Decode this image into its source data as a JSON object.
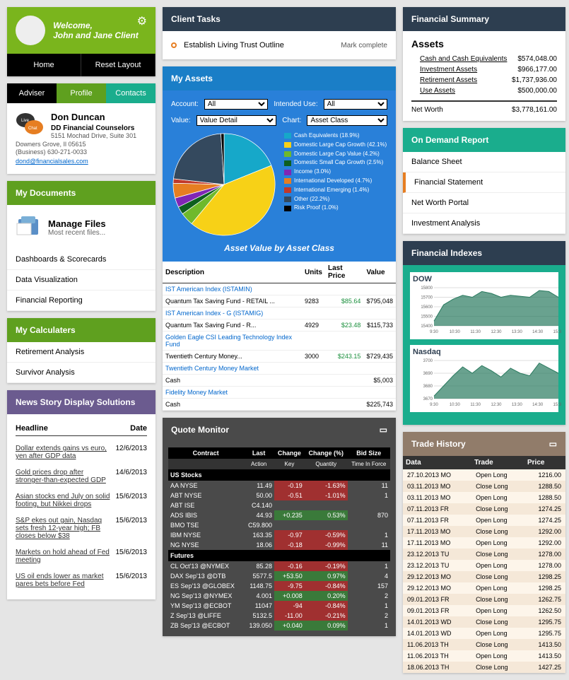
{
  "welcome": {
    "greeting": "Welcome,",
    "name": "John and Jane Client"
  },
  "nav": {
    "home": "Home",
    "reset": "Reset  Layout"
  },
  "tabs": {
    "adviser": "Adviser",
    "profile": "Profile",
    "contacts": "Contacts"
  },
  "adviser": {
    "name": "Don Duncan",
    "company": "DD Financial Counselors",
    "addr1": "5151 Mochad Drive, Suite 301",
    "addr2": "Downers Grove, Il 05615",
    "phone": "(Business) 630-271-0033",
    "email": "dond@financialsales.com"
  },
  "myDocuments": {
    "title": "My Documents",
    "manage": "Manage Files",
    "sub": "Most recent files...",
    "items": [
      "Dashboards & Scorecards",
      "Data Visualization",
      "Financial Reporting"
    ]
  },
  "myCalculators": {
    "title": "My Calculaters",
    "items": [
      "Retirement Analysis",
      "Survivor Analysis"
    ]
  },
  "news": {
    "title": "News  Story Display Solutions",
    "col1": "Headline",
    "col2": "Date",
    "rows": [
      {
        "h": "Dollar extends gains vs euro, yen after GDP data",
        "d": "12/6/2013"
      },
      {
        "h": "Gold prices drop after stronger-than-expected GDP",
        "d": "14/6/2013"
      },
      {
        "h": "Asian stocks end July on solid footing, but Nikkei drops",
        "d": "15/6/2013"
      },
      {
        "h": "S&P ekes out gain, Nasdaq sets fresh 12-year high; FB closes below $38",
        "d": "15/6/2013"
      },
      {
        "h": "Markets on hold ahead of Fed meeting",
        "d": "15/6/2013"
      },
      {
        "h": "US oil ends lower as market pares bets before Fed",
        "d": "15/6/2013"
      }
    ]
  },
  "clientTasks": {
    "title": "Client Tasks",
    "task": "Establish Living Trust Outline",
    "action": "Mark complete"
  },
  "myAssets": {
    "title": "My Assets",
    "filters": {
      "account": "Account:",
      "accountVal": "All",
      "intended": "Intended Use:",
      "intendedVal": "All",
      "value": "Value:",
      "valueVal": "Value Detail",
      "chart": "Chart:",
      "chartVal": "Asset Class"
    },
    "chartTitle": "Asset Value by Asset Class",
    "legend": [
      {
        "c": "#16a8c9",
        "t": "Cash Equivalents (18.9%)"
      },
      {
        "c": "#f7d117",
        "t": "Domestic Large Cap Growth (42.1%)"
      },
      {
        "c": "#6fb92c",
        "t": "Domestic Large Cap Value (4.2%)"
      },
      {
        "c": "#0d5f1f",
        "t": "Domestic Small Cap Growth (2.5%)"
      },
      {
        "c": "#8026b5",
        "t": "Income (3.0%)"
      },
      {
        "c": "#e67e22",
        "t": "International Developed (4.7%)"
      },
      {
        "c": "#c0392b",
        "t": "International Emerging (1.4%)"
      },
      {
        "c": "#34495e",
        "t": "Other (22.2%)"
      },
      {
        "c": "#000000",
        "t": "Risk Proof (1.0%)"
      }
    ],
    "pie": {
      "slices": [
        {
          "pct": 18.9,
          "c": "#16a8c9"
        },
        {
          "pct": 42.1,
          "c": "#f7d117"
        },
        {
          "pct": 4.2,
          "c": "#6fb92c"
        },
        {
          "pct": 2.5,
          "c": "#0d5f1f"
        },
        {
          "pct": 3.0,
          "c": "#8026b5"
        },
        {
          "pct": 4.7,
          "c": "#e67e22"
        },
        {
          "pct": 1.4,
          "c": "#c0392b"
        },
        {
          "pct": 22.2,
          "c": "#34495e"
        },
        {
          "pct": 1.0,
          "c": "#000000"
        }
      ]
    },
    "tblHdr": [
      "Description",
      "Units",
      "Last Price",
      "Value"
    ],
    "rows": [
      {
        "d": "IST American Index (ISTAMIN)",
        "link": true
      },
      {
        "d": "Quantum Tax Saving Fund - RETAIL ...",
        "u": "9283",
        "p": "$85.64",
        "v": "$795,048"
      },
      {
        "d": "IST American Index - G (ISTAMIG)",
        "link": true
      },
      {
        "d": "Quantum Tax Saving Fund - R...",
        "u": "4929",
        "p": "$23.48",
        "v": "$115,733"
      },
      {
        "d": "Golden Eagle CSI Leading Technology Index Fund",
        "link": true
      },
      {
        "d": "Twentieth Century Money...",
        "u": "3000",
        "p": "$243.15",
        "v": "$729,435"
      },
      {
        "d": "Twentieth Century Money Market",
        "link": true
      },
      {
        "d": "Cash",
        "v": "$5,003"
      },
      {
        "d": "Fidelity Money Market",
        "link": true
      },
      {
        "d": "Cash",
        "v": "$225,743"
      }
    ]
  },
  "finSummary": {
    "title": "Financial Summary",
    "heading": "Assets",
    "rows": [
      {
        "l": "Cash and Cash Equivalents",
        "v": "$574,048.00"
      },
      {
        "l": "Investment Assets",
        "v": "$966,177.00"
      },
      {
        "l": "Retirement Assets",
        "v": "$1,737,936.00"
      },
      {
        "l": "Use Assets",
        "v": "$500,000.00"
      }
    ],
    "netLabel": "Net Worth",
    "netVal": "$3,778,161.00"
  },
  "onDemand": {
    "title": "On Demand Report",
    "items": [
      "Balance Sheet",
      "Financial Statement",
      "Net Worth Portal",
      "Investment Analysis"
    ],
    "active": 1
  },
  "finIndexes": {
    "title": "Financial Indexes",
    "dow": {
      "label": "DOW",
      "yticks": [
        "15800",
        "15700",
        "15600",
        "15500",
        "15400"
      ],
      "xticks": [
        "9:30",
        "10:30",
        "11:30",
        "12:30",
        "13:30",
        "14:30",
        "15:30"
      ],
      "color": "#2a7a5f",
      "data": [
        15450,
        15620,
        15680,
        15720,
        15700,
        15760,
        15740,
        15700,
        15720,
        15710,
        15700,
        15770,
        15760,
        15700
      ]
    },
    "nasdaq": {
      "label": "Nasdaq",
      "yticks": [
        "3700",
        "3690",
        "3680",
        "3670"
      ],
      "xticks": [
        "9:30",
        "10:30",
        "11:30",
        "12:30",
        "13:30",
        "14:30",
        "15:30"
      ],
      "color": "#2a7a5f",
      "data": [
        3672,
        3680,
        3688,
        3695,
        3690,
        3696,
        3692,
        3687,
        3694,
        3690,
        3688,
        3698,
        3694,
        3690
      ]
    }
  },
  "quoteMonitor": {
    "title": "Quote Monitor",
    "hdr": [
      "Contract",
      "Last",
      "Change",
      "Change (%)",
      "Bid Size"
    ],
    "sub": [
      "Action",
      "Key",
      "Quantity",
      "Time In Force"
    ],
    "sections": [
      {
        "name": "US Stocks",
        "rows": [
          {
            "s": "AA NYSE",
            "l": "11.49",
            "c": "-0.19",
            "cp": "-1.63%",
            "b": "11",
            "neg": true
          },
          {
            "s": "ABT NYSE",
            "l": "50.00",
            "c": "-0.51",
            "cp": "-1.01%",
            "b": "1",
            "neg": true
          },
          {
            "s": "ABT ISE",
            "l": "C4.140"
          },
          {
            "s": "ADS IBIS",
            "l": "44.93",
            "c": "+0.235",
            "cp": "0.53%",
            "b": "870",
            "pos": true
          },
          {
            "s": "BMO TSE",
            "l": "C59.800"
          },
          {
            "s": "IBM NYSE",
            "l": "163.35",
            "c": "-0.97",
            "cp": "-0.59%",
            "b": "1",
            "neg": true
          },
          {
            "s": "NG NYSE",
            "l": "18.06",
            "c": "-0.18",
            "cp": "-0.99%",
            "b": "11",
            "neg": true
          }
        ]
      },
      {
        "name": "Futures",
        "rows": [
          {
            "s": "CL Oct'13 @NYMEX",
            "l": "85.28",
            "c": "-0.16",
            "cp": "-0.19%",
            "b": "1",
            "neg": true
          },
          {
            "s": "DAX Sep'13 @DTB",
            "l": "5577.5",
            "c": "+53.50",
            "cp": "0.97%",
            "b": "4",
            "pos": true
          },
          {
            "s": "ES Sep'13 @GLOBEX",
            "l": "1148.75",
            "c": "-9.75",
            "cp": "-0.84%",
            "b": "157",
            "neg": true
          },
          {
            "s": "NG Sep'13 @NYMEX",
            "l": "4.001",
            "c": "+0.008",
            "cp": "0.20%",
            "b": "2",
            "pos": true
          },
          {
            "s": "YM Sep'13 @ECBOT",
            "l": "11047",
            "c": "-94",
            "cp": "-0.84%",
            "b": "1",
            "neg": true
          },
          {
            "s": "Z Sep'13 @LIFFE",
            "l": "5132.5",
            "c": "-11.00",
            "cp": "-0.21%",
            "b": "2",
            "neg": true
          },
          {
            "s": "ZB Sep'13 @ECBOT",
            "l": "139.050",
            "c": "+0.040",
            "cp": "0.09%",
            "b": "1",
            "pos": true
          }
        ]
      }
    ]
  },
  "tradeHistory": {
    "title": "Trade History",
    "hdr": [
      "Data",
      "Trade",
      "Price"
    ],
    "rows": [
      [
        "27.10.2013 MO",
        "Open Long",
        "1216.00"
      ],
      [
        "03.11.2013 MO",
        "Close Long",
        "1288.50"
      ],
      [
        "03.11.2013 MO",
        "Open Long",
        "1288.50"
      ],
      [
        "07.11.2013 FR",
        "Close Long",
        "1274.25"
      ],
      [
        "07.11.2013 FR",
        "Open Long",
        "1274.25"
      ],
      [
        "17.11.2013 MO",
        "Close Long",
        "1292.00"
      ],
      [
        "17.11.2013 MO",
        "Open Long",
        "1292.00"
      ],
      [
        "23.12.2013 TU",
        "Close Long",
        "1278.00"
      ],
      [
        "23.12.2013 TU",
        "Open Long",
        "1278.00"
      ],
      [
        "29.12.2013 MO",
        "Close Long",
        "1298.25"
      ],
      [
        "29.12.2013 MO",
        "Open Long",
        "1298.25"
      ],
      [
        "09.01.2013 FR",
        "Close Long",
        "1262.75"
      ],
      [
        "09.01.2013 FR",
        "Open Long",
        "1262.50"
      ],
      [
        "14.01.2013 WD",
        "Close Long",
        "1295.75"
      ],
      [
        "14.01.2013 WD",
        "Open Long",
        "1295.75"
      ],
      [
        "11.06.2013 TH",
        "Close Long",
        "1413.50"
      ],
      [
        "11.06.2013 TH",
        "Open Long",
        "1413.50"
      ],
      [
        "18.06.2013 TH",
        "Close Long",
        "1427.25"
      ]
    ]
  }
}
